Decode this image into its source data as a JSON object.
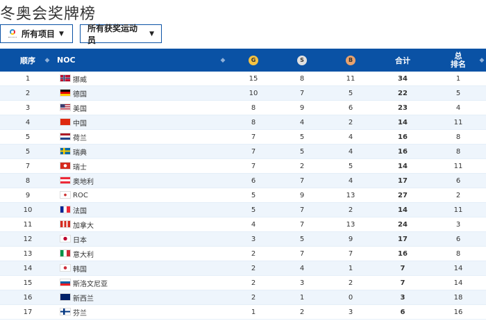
{
  "title": "冬奥会奖牌榜",
  "filters": {
    "events": "所有项目",
    "athletes": "所有获奖运动员"
  },
  "header": {
    "rank": "顺序",
    "noc": "NOC",
    "gold": "G",
    "silver": "S",
    "bronze": "B",
    "total": "合计",
    "overall_rank_1": "总",
    "overall_rank_2": "排名"
  },
  "colors": {
    "header_bg": "#0a52a5",
    "gold": "#f5c242",
    "silver": "#e0e0e0",
    "bronze": "#e8a26e"
  },
  "rows": [
    {
      "rank": "1",
      "noc": "挪威",
      "flag": "norway",
      "g": "15",
      "s": "8",
      "b": "11",
      "total": "34",
      "overall": "1"
    },
    {
      "rank": "2",
      "noc": "德国",
      "flag": "germany",
      "g": "10",
      "s": "7",
      "b": "5",
      "total": "22",
      "overall": "5"
    },
    {
      "rank": "3",
      "noc": "美国",
      "flag": "usa",
      "g": "8",
      "s": "9",
      "b": "6",
      "total": "23",
      "overall": "4"
    },
    {
      "rank": "4",
      "noc": "中国",
      "flag": "china",
      "g": "8",
      "s": "4",
      "b": "2",
      "total": "14",
      "overall": "11"
    },
    {
      "rank": "5",
      "noc": "荷兰",
      "flag": "netherlands",
      "g": "7",
      "s": "5",
      "b": "4",
      "total": "16",
      "overall": "8"
    },
    {
      "rank": "5",
      "noc": "瑞典",
      "flag": "sweden",
      "g": "7",
      "s": "5",
      "b": "4",
      "total": "16",
      "overall": "8"
    },
    {
      "rank": "7",
      "noc": "瑞士",
      "flag": "switzerland",
      "g": "7",
      "s": "2",
      "b": "5",
      "total": "14",
      "overall": "11"
    },
    {
      "rank": "8",
      "noc": "奥地利",
      "flag": "austria",
      "g": "6",
      "s": "7",
      "b": "4",
      "total": "17",
      "overall": "6"
    },
    {
      "rank": "9",
      "noc": "ROC",
      "flag": "roc",
      "g": "5",
      "s": "9",
      "b": "13",
      "total": "27",
      "overall": "2"
    },
    {
      "rank": "10",
      "noc": "法国",
      "flag": "france",
      "g": "5",
      "s": "7",
      "b": "2",
      "total": "14",
      "overall": "11"
    },
    {
      "rank": "11",
      "noc": "加拿大",
      "flag": "canada",
      "g": "4",
      "s": "7",
      "b": "13",
      "total": "24",
      "overall": "3"
    },
    {
      "rank": "12",
      "noc": "日本",
      "flag": "japan",
      "g": "3",
      "s": "5",
      "b": "9",
      "total": "17",
      "overall": "6"
    },
    {
      "rank": "13",
      "noc": "意大利",
      "flag": "italy",
      "g": "2",
      "s": "7",
      "b": "7",
      "total": "16",
      "overall": "8"
    },
    {
      "rank": "14",
      "noc": "韩国",
      "flag": "korea",
      "g": "2",
      "s": "4",
      "b": "1",
      "total": "7",
      "overall": "14"
    },
    {
      "rank": "15",
      "noc": "斯洛文尼亚",
      "flag": "slovenia",
      "g": "2",
      "s": "3",
      "b": "2",
      "total": "7",
      "overall": "14"
    },
    {
      "rank": "16",
      "noc": "新西兰",
      "flag": "new-zealand",
      "g": "2",
      "s": "1",
      "b": "0",
      "total": "3",
      "overall": "18"
    },
    {
      "rank": "17",
      "noc": "芬兰",
      "flag": "finland",
      "g": "1",
      "s": "2",
      "b": "3",
      "total": "6",
      "overall": "16"
    }
  ]
}
